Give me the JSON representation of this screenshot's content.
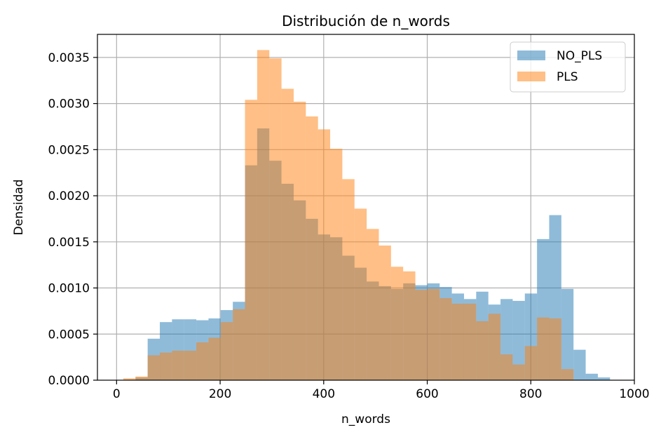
{
  "chart_data": {
    "type": "histogram",
    "title": "Distribución de n_words",
    "xlabel": "n_words",
    "ylabel": "Densidad",
    "xlim": [
      -37,
      1000
    ],
    "ylim": [
      0,
      0.00375
    ],
    "grid": true,
    "legend_position": "top-right",
    "x_ticks": [
      0,
      200,
      400,
      600,
      800,
      1000
    ],
    "x_tick_labels": [
      "0",
      "200",
      "400",
      "600",
      "800",
      "1000"
    ],
    "y_ticks": [
      0,
      0.0005,
      0.001,
      0.0015,
      0.002,
      0.0025,
      0.003,
      0.0035
    ],
    "y_tick_labels": [
      "0.0000",
      "0.0005",
      "0.0010",
      "0.0015",
      "0.0020",
      "0.0025",
      "0.0030",
      "0.0035"
    ],
    "series": [
      {
        "name": "NO_PLS",
        "color": "#1f77b4",
        "alpha": 0.5,
        "bin_edges": [
          13,
          36.5,
          60,
          83.5,
          107,
          130.5,
          154,
          177.5,
          201,
          224.5,
          248,
          271.5,
          295,
          318.5,
          342,
          365.5,
          389,
          412.5,
          436,
          459.5,
          483,
          506.5,
          530,
          553.5,
          577,
          600.5,
          624,
          647.5,
          671,
          694.5,
          718,
          741.5,
          765,
          788.5,
          812,
          835.5,
          859,
          882.5,
          906,
          929.5
        ],
        "values": [
          0.0,
          3e-05,
          0.00045,
          0.00063,
          0.00066,
          0.00066,
          0.00065,
          0.00067,
          0.00076,
          0.00085,
          0.00233,
          0.00273,
          0.00238,
          0.00213,
          0.00195,
          0.00175,
          0.00158,
          0.00155,
          0.00135,
          0.00122,
          0.00107,
          0.00102,
          0.00099,
          0.00105,
          0.00103,
          0.00105,
          0.00101,
          0.00094,
          0.00088,
          0.00096,
          0.00082,
          0.00088,
          0.00086,
          0.00094,
          0.00153,
          0.00179,
          0.00099,
          0.00033,
          7e-05,
          3e-05
        ]
      },
      {
        "name": "PLS",
        "color": "#ff7f0e",
        "alpha": 0.5,
        "bin_edges": [
          13,
          36.5,
          60,
          83.5,
          107,
          130.5,
          154,
          177.5,
          201,
          224.5,
          248,
          271.5,
          295,
          318.5,
          342,
          365.5,
          389,
          412.5,
          436,
          459.5,
          483,
          506.5,
          530,
          553.5,
          577,
          600.5,
          624,
          647.5,
          671,
          694.5,
          718,
          741.5,
          765,
          788.5,
          812,
          835.5,
          859,
          882.5,
          906,
          929.5
        ],
        "values": [
          2e-05,
          4e-05,
          0.00027,
          0.0003,
          0.00032,
          0.00032,
          0.00041,
          0.00046,
          0.00063,
          0.00077,
          0.00304,
          0.00358,
          0.00349,
          0.00316,
          0.00302,
          0.00286,
          0.00272,
          0.00251,
          0.00218,
          0.00186,
          0.00164,
          0.00146,
          0.00123,
          0.00118,
          0.00098,
          0.00099,
          0.00089,
          0.00083,
          0.00083,
          0.00064,
          0.00072,
          0.00028,
          0.00017,
          0.00037,
          0.00068,
          0.00067,
          0.00012,
          0.0,
          0.0,
          0.0
        ]
      }
    ]
  }
}
